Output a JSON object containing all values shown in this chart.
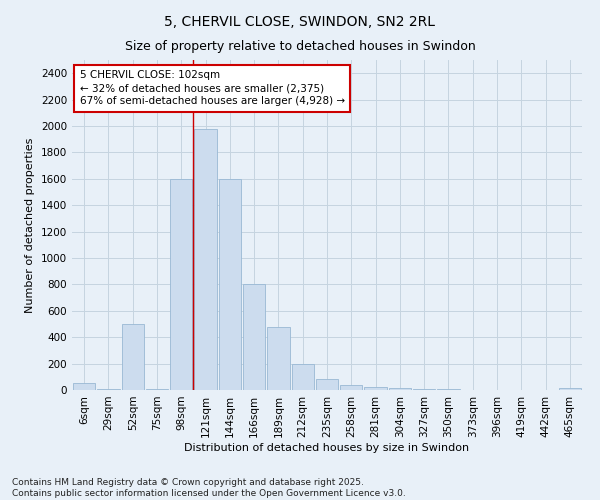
{
  "title": "5, CHERVIL CLOSE, SWINDON, SN2 2RL",
  "subtitle": "Size of property relative to detached houses in Swindon",
  "xlabel": "Distribution of detached houses by size in Swindon",
  "ylabel": "Number of detached properties",
  "categories": [
    "6sqm",
    "29sqm",
    "52sqm",
    "75sqm",
    "98sqm",
    "121sqm",
    "144sqm",
    "166sqm",
    "189sqm",
    "212sqm",
    "235sqm",
    "258sqm",
    "281sqm",
    "304sqm",
    "327sqm",
    "350sqm",
    "373sqm",
    "396sqm",
    "419sqm",
    "442sqm",
    "465sqm"
  ],
  "values": [
    55,
    5,
    500,
    5,
    1600,
    1975,
    1600,
    800,
    480,
    200,
    85,
    40,
    25,
    15,
    8,
    5,
    3,
    2,
    1,
    1,
    15
  ],
  "bar_color": "#ccdcee",
  "bar_edge_color": "#99b8d4",
  "grid_color": "#c5d4e0",
  "background_color": "#e8f0f8",
  "vline_x_index": 4.5,
  "vline_color": "#cc0000",
  "annotation_text": "5 CHERVIL CLOSE: 102sqm\n← 32% of detached houses are smaller (2,375)\n67% of semi-detached houses are larger (4,928) →",
  "annotation_box_color": "#ffffff",
  "annotation_box_edge": "#cc0000",
  "ylim": [
    0,
    2500
  ],
  "yticks": [
    0,
    200,
    400,
    600,
    800,
    1000,
    1200,
    1400,
    1600,
    1800,
    2000,
    2200,
    2400
  ],
  "footnote": "Contains HM Land Registry data © Crown copyright and database right 2025.\nContains public sector information licensed under the Open Government Licence v3.0.",
  "title_fontsize": 10,
  "subtitle_fontsize": 9,
  "xlabel_fontsize": 8,
  "ylabel_fontsize": 8,
  "tick_fontsize": 7.5,
  "annotation_fontsize": 7.5,
  "footnote_fontsize": 6.5
}
